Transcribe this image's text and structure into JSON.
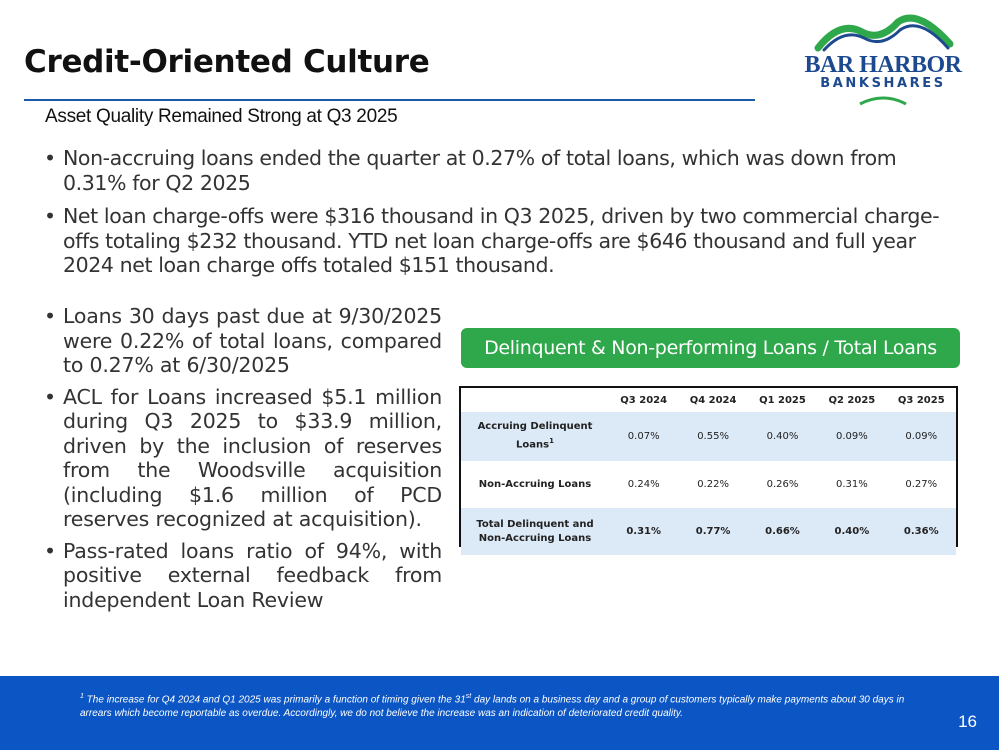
{
  "title": "Credit-Oriented Culture",
  "logo": {
    "line1": "BAR HARBOR",
    "line2": "BANKSHARES"
  },
  "subtitle": "Asset Quality Remained Strong at Q3 2025",
  "bullets_wide": [
    "Non-accruing loans ended the quarter at 0.27% of total loans, which was down from 0.31% for Q2 2025",
    "Net loan charge-offs were $316 thousand in Q3 2025, driven by two commercial charge-offs totaling $232 thousand. YTD net loan charge-offs are $646 thousand and full year 2024 net loan charge offs totaled $151 thousand."
  ],
  "bullets_narrow": [
    "Loans 30 days past due at 9/30/2025 were 0.22% of total loans, compared to 0.27% at 6/30/2025",
    "ACL for Loans increased $5.1 million during Q3 2025 to $33.9 million, driven by the inclusion of reserves from the Woodsville acquisition (including $1.6 million of PCD reserves recognized at acquisition).",
    "Pass-rated loans ratio of 94%, with positive external feedback from independent Loan Review"
  ],
  "table": {
    "title": "Delinquent & Non-performing Loans / Total Loans",
    "columns": [
      "Q3 2024",
      "Q4 2024",
      "Q1 2025",
      "Q2 2025",
      "Q3 2025"
    ],
    "rows": [
      {
        "label": "Accruing Delinquent Loans",
        "sup": "1",
        "values": [
          "0.07%",
          "0.55%",
          "0.40%",
          "0.09%",
          "0.09%"
        ]
      },
      {
        "label": "Non-Accruing Loans",
        "values": [
          "0.24%",
          "0.22%",
          "0.26%",
          "0.31%",
          "0.27%"
        ]
      },
      {
        "label": "Total Delinquent and Non-Accruing Loans",
        "values": [
          "0.31%",
          "0.77%",
          "0.66%",
          "0.40%",
          "0.36%"
        ]
      }
    ]
  },
  "footnote": {
    "sup": "1",
    "text_a": " The increase for Q4 2024 and Q1 2025 was primarily a function of timing given the 31",
    "sup2": "st",
    "text_b": " day lands on a business day and a group of customers typically make payments about 30 days in arrears which become reportable as overdue. Accordingly, we do not believe the increase was an indication of deteriorated credit quality."
  },
  "page_number": "16",
  "colors": {
    "accent_blue": "#1f5aa8",
    "green": "#2ea84b",
    "footer_blue": "#0b55c4",
    "row_tint": "#dce9f6"
  }
}
